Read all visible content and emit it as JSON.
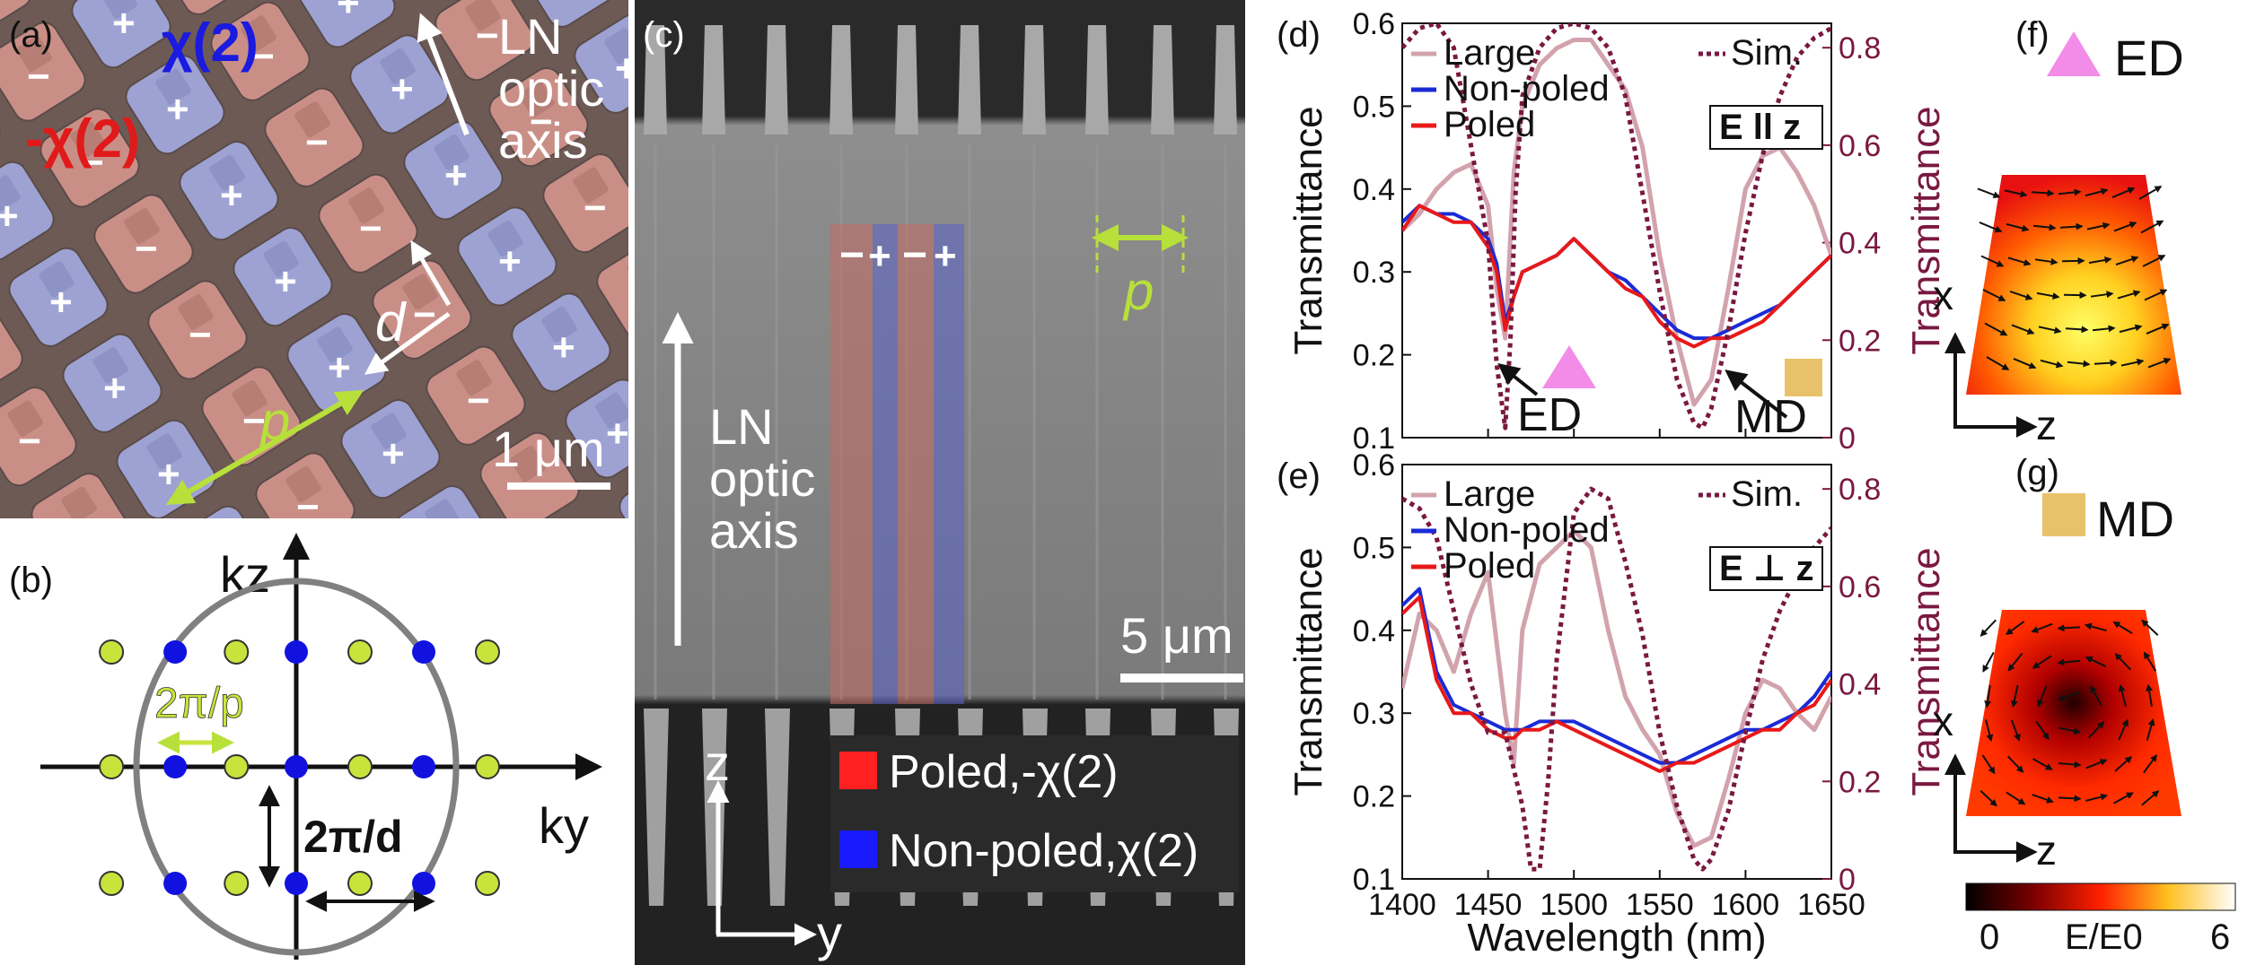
{
  "panel_labels": {
    "a": "(a)",
    "b": "(b)",
    "c": "(c)",
    "d": "(d)",
    "e": "(e)",
    "f": "(f)",
    "g": "(g)"
  },
  "panel_a": {
    "chi_pos": "χ(2)",
    "chi_neg": "-χ(2)",
    "optic_axis": [
      "LN",
      "optic",
      "axis"
    ],
    "plus_sign": "+",
    "minus_sign": "−",
    "d_label": "d",
    "p_label": "p",
    "scale_bar": "1 μm",
    "colors": {
      "poled": "#c98f87",
      "non_poled": "#9da2d3",
      "chi_pos": "#1a1ae0",
      "chi_neg": "#e01a1a",
      "p_arrow": "#b8e03a"
    }
  },
  "panel_b": {
    "kz": "kz",
    "ky": "ky",
    "two_pi_p": "2π/p",
    "two_pi_d": "2π/d",
    "colors": {
      "yellow_dot": "#c8e43c",
      "blue_dot": "#1212e0",
      "circle": "#808080"
    }
  },
  "panel_c": {
    "optic_axis": [
      "LN",
      "optic",
      "axis"
    ],
    "p_label": "p",
    "scale_bar": "5 μm",
    "minus_sign": "−",
    "plus_sign": "+",
    "legend": [
      {
        "label": "Poled,-χ(2)",
        "color": "#ff2020"
      },
      {
        "label": "Non-poled,χ(2)",
        "color": "#1a1aff"
      }
    ],
    "axis_z": "z",
    "axis_y": "y"
  },
  "chart_data": [
    {
      "type": "line",
      "panel": "d",
      "xlabel": "Wavelength (nm)",
      "ylabel": "Transmittance",
      "ylabel_right": "Transmittance",
      "xlim": [
        1400,
        1650
      ],
      "ylim": [
        0.1,
        0.6
      ],
      "ylim_right": [
        0,
        0.85
      ],
      "xticks": [
        "1400",
        "1450",
        "1500",
        "1550",
        "1600",
        "1650"
      ],
      "yticks": [
        "0.1",
        "0.2",
        "0.3",
        "0.4",
        "0.5",
        "0.6"
      ],
      "yticks_right": [
        "0",
        "0.2",
        "0.4",
        "0.6",
        "0.8"
      ],
      "polarization": "E ll z",
      "annotations": [
        "ED",
        "MD"
      ],
      "series": [
        {
          "name": "Large",
          "color": "#d2a3ad",
          "x": [
            1400,
            1410,
            1420,
            1430,
            1440,
            1450,
            1455,
            1460,
            1465,
            1470,
            1480,
            1490,
            1500,
            1510,
            1520,
            1530,
            1540,
            1550,
            1560,
            1570,
            1580,
            1590,
            1600,
            1610,
            1620,
            1630,
            1640,
            1650
          ],
          "values": [
            0.35,
            0.37,
            0.4,
            0.42,
            0.43,
            0.38,
            0.28,
            0.22,
            0.42,
            0.5,
            0.55,
            0.57,
            0.58,
            0.58,
            0.55,
            0.52,
            0.45,
            0.32,
            0.22,
            0.14,
            0.17,
            0.28,
            0.4,
            0.44,
            0.45,
            0.42,
            0.38,
            0.32
          ]
        },
        {
          "name": "Non-poled",
          "color": "#1a2bd6",
          "x": [
            1400,
            1410,
            1420,
            1430,
            1440,
            1450,
            1455,
            1460,
            1465,
            1470,
            1480,
            1490,
            1500,
            1510,
            1520,
            1530,
            1540,
            1550,
            1560,
            1570,
            1580,
            1590,
            1600,
            1610,
            1620,
            1630,
            1640,
            1650
          ],
          "values": [
            0.36,
            0.38,
            0.37,
            0.37,
            0.36,
            0.34,
            0.31,
            0.24,
            0.27,
            0.3,
            0.31,
            0.32,
            0.34,
            0.32,
            0.3,
            0.29,
            0.27,
            0.25,
            0.23,
            0.22,
            0.22,
            0.23,
            0.24,
            0.25,
            0.26,
            0.28,
            0.3,
            0.32
          ]
        },
        {
          "name": "Poled",
          "color": "#e81919",
          "x": [
            1400,
            1410,
            1420,
            1430,
            1440,
            1450,
            1455,
            1460,
            1465,
            1470,
            1480,
            1490,
            1500,
            1510,
            1520,
            1530,
            1540,
            1550,
            1560,
            1570,
            1580,
            1590,
            1600,
            1610,
            1620,
            1630,
            1640,
            1650
          ],
          "values": [
            0.35,
            0.38,
            0.37,
            0.36,
            0.36,
            0.33,
            0.3,
            0.23,
            0.27,
            0.3,
            0.31,
            0.32,
            0.34,
            0.32,
            0.3,
            0.28,
            0.27,
            0.24,
            0.22,
            0.21,
            0.22,
            0.22,
            0.23,
            0.24,
            0.26,
            0.28,
            0.3,
            0.32
          ]
        },
        {
          "name": "Sim.",
          "color": "#7a1840",
          "dashed": true,
          "axis": "right",
          "x": [
            1400,
            1410,
            1420,
            1430,
            1440,
            1450,
            1455,
            1460,
            1463,
            1466,
            1470,
            1480,
            1490,
            1500,
            1510,
            1520,
            1530,
            1540,
            1550,
            1560,
            1570,
            1575,
            1580,
            1590,
            1600,
            1610,
            1620,
            1630,
            1640,
            1650
          ],
          "values": [
            0.8,
            0.84,
            0.85,
            0.8,
            0.6,
            0.4,
            0.15,
            0.02,
            0.2,
            0.5,
            0.7,
            0.8,
            0.84,
            0.85,
            0.84,
            0.8,
            0.7,
            0.5,
            0.3,
            0.12,
            0.03,
            0.02,
            0.06,
            0.22,
            0.42,
            0.58,
            0.7,
            0.78,
            0.82,
            0.84
          ]
        }
      ]
    },
    {
      "type": "line",
      "panel": "e",
      "xlabel": "Wavelength (nm)",
      "ylabel": "Transmittance",
      "ylabel_right": "Transmittance",
      "xlim": [
        1400,
        1650
      ],
      "ylim": [
        0.1,
        0.6
      ],
      "ylim_right": [
        0,
        0.85
      ],
      "xticks": [
        "1400",
        "1450",
        "1500",
        "1550",
        "1600",
        "1650"
      ],
      "yticks": [
        "0.1",
        "0.2",
        "0.3",
        "0.4",
        "0.5",
        "0.6"
      ],
      "yticks_right": [
        "0",
        "0.2",
        "0.4",
        "0.6",
        "0.8"
      ],
      "polarization": "E ⊥ z",
      "series": [
        {
          "name": "Large",
          "color": "#d2a3ad",
          "x": [
            1400,
            1410,
            1420,
            1430,
            1440,
            1450,
            1460,
            1465,
            1470,
            1480,
            1490,
            1500,
            1510,
            1520,
            1530,
            1540,
            1550,
            1560,
            1570,
            1580,
            1590,
            1600,
            1610,
            1620,
            1630,
            1640,
            1650
          ],
          "values": [
            0.33,
            0.42,
            0.4,
            0.35,
            0.42,
            0.47,
            0.3,
            0.24,
            0.4,
            0.48,
            0.5,
            0.52,
            0.5,
            0.4,
            0.32,
            0.28,
            0.25,
            0.18,
            0.14,
            0.15,
            0.22,
            0.3,
            0.34,
            0.33,
            0.3,
            0.28,
            0.32
          ]
        },
        {
          "name": "Non-poled",
          "color": "#1a2bd6",
          "x": [
            1400,
            1410,
            1420,
            1430,
            1440,
            1450,
            1460,
            1465,
            1470,
            1480,
            1490,
            1500,
            1510,
            1520,
            1530,
            1540,
            1550,
            1560,
            1570,
            1580,
            1590,
            1600,
            1610,
            1620,
            1630,
            1640,
            1650
          ],
          "values": [
            0.43,
            0.45,
            0.35,
            0.31,
            0.3,
            0.29,
            0.28,
            0.28,
            0.28,
            0.29,
            0.29,
            0.29,
            0.28,
            0.27,
            0.26,
            0.25,
            0.24,
            0.24,
            0.25,
            0.26,
            0.27,
            0.28,
            0.28,
            0.29,
            0.3,
            0.32,
            0.35
          ]
        },
        {
          "name": "Poled",
          "color": "#e81919",
          "x": [
            1400,
            1410,
            1420,
            1430,
            1440,
            1450,
            1460,
            1465,
            1470,
            1480,
            1490,
            1500,
            1510,
            1520,
            1530,
            1540,
            1550,
            1560,
            1570,
            1580,
            1590,
            1600,
            1610,
            1620,
            1630,
            1640,
            1650
          ],
          "values": [
            0.42,
            0.44,
            0.34,
            0.3,
            0.3,
            0.28,
            0.27,
            0.27,
            0.28,
            0.28,
            0.29,
            0.28,
            0.27,
            0.26,
            0.25,
            0.24,
            0.23,
            0.24,
            0.24,
            0.25,
            0.26,
            0.27,
            0.28,
            0.28,
            0.3,
            0.31,
            0.34
          ]
        },
        {
          "name": "Sim.",
          "color": "#7a1840",
          "dashed": true,
          "axis": "right",
          "x": [
            1400,
            1410,
            1420,
            1430,
            1440,
            1450,
            1460,
            1470,
            1475,
            1480,
            1485,
            1490,
            1500,
            1510,
            1520,
            1530,
            1540,
            1550,
            1560,
            1570,
            1575,
            1580,
            1590,
            1600,
            1610,
            1620,
            1630,
            1640,
            1650
          ],
          "values": [
            0.78,
            0.76,
            0.7,
            0.55,
            0.4,
            0.3,
            0.3,
            0.15,
            0.02,
            0.02,
            0.2,
            0.45,
            0.75,
            0.8,
            0.78,
            0.65,
            0.5,
            0.3,
            0.15,
            0.04,
            0.02,
            0.04,
            0.14,
            0.3,
            0.45,
            0.55,
            0.62,
            0.68,
            0.72
          ]
        }
      ]
    }
  ],
  "panel_f": {
    "label": "ED",
    "axis_x": "x",
    "axis_z": "z",
    "triangle_color": "#f28ce8"
  },
  "panel_g": {
    "label": "MD",
    "axis_x": "x",
    "axis_z": "z",
    "square_color": "#e8c26a"
  },
  "colorbar": {
    "min": "0",
    "max": "6",
    "label": "E/E0"
  },
  "plot_ed_label": "ED",
  "plot_md_label": "MD"
}
